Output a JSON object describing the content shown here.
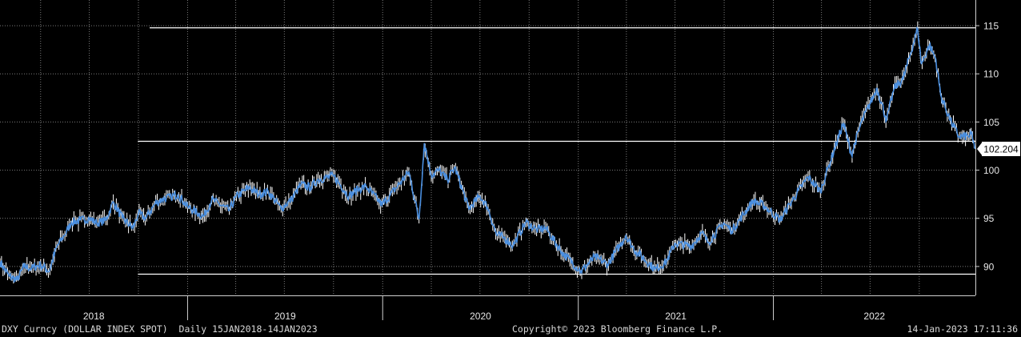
{
  "footer": {
    "left": "DXY Curncy (DOLLAR INDEX SPOT)  Daily 15JAN2018-14JAN2023",
    "center": "Copyright© 2023 Bloomberg Finance L.P.",
    "right": "14-Jan-2023 17:11:36"
  },
  "colors": {
    "background": "#000000",
    "grid": "#7a7a7a",
    "price_line": "#4a8fe0",
    "candle": "#ffffff",
    "reference_lines": "#ffffff",
    "last_price_badge_bg": "#ffffff",
    "last_price_badge_text": "#000000",
    "axis_text": "#e6e6e6"
  },
  "chart_data": {
    "type": "line",
    "series_id": "DXY Curncy",
    "x_unit": "date",
    "x_range": [
      "2018-01-15",
      "2023-01-14"
    ],
    "y_range": [
      87,
      117
    ],
    "y_ticks": [
      90,
      95,
      100,
      105,
      110,
      115
    ],
    "year_labels": [
      "2018",
      "2019",
      "2020",
      "2021",
      "2022"
    ],
    "year_boundaries": [
      "2019-01-01",
      "2020-01-01",
      "2021-01-01",
      "2022-01-01"
    ],
    "grid": true,
    "last_price": 102.204,
    "last_price_label": "102.204",
    "reference_lines": [
      {
        "value": 114.78,
        "from": "2018-10-22"
      },
      {
        "value": 103.0,
        "from": "2018-09-30"
      },
      {
        "value": 89.2,
        "from": "2018-09-30"
      }
    ],
    "points": [
      [
        "2018-01-15",
        90.5
      ],
      [
        "2018-02-01",
        89.0
      ],
      [
        "2018-02-16",
        88.6
      ],
      [
        "2018-03-01",
        90.0
      ],
      [
        "2018-03-15",
        89.8
      ],
      [
        "2018-04-01",
        90.2
      ],
      [
        "2018-04-17",
        89.5
      ],
      [
        "2018-05-01",
        92.0
      ],
      [
        "2018-05-15",
        93.2
      ],
      [
        "2018-05-29",
        94.6
      ],
      [
        "2018-06-15",
        94.8
      ],
      [
        "2018-07-01",
        95.0
      ],
      [
        "2018-07-15",
        94.5
      ],
      [
        "2018-08-01",
        94.8
      ],
      [
        "2018-08-15",
        96.7
      ],
      [
        "2018-09-01",
        95.0
      ],
      [
        "2018-09-21",
        94.0
      ],
      [
        "2018-10-01",
        95.5
      ],
      [
        "2018-10-15",
        95.0
      ],
      [
        "2018-11-01",
        96.5
      ],
      [
        "2018-11-15",
        97.0
      ],
      [
        "2018-12-01",
        97.2
      ],
      [
        "2018-12-14",
        97.5
      ],
      [
        "2019-01-01",
        96.2
      ],
      [
        "2019-01-31",
        95.2
      ],
      [
        "2019-02-15",
        96.9
      ],
      [
        "2019-03-01",
        96.5
      ],
      [
        "2019-03-20",
        95.8
      ],
      [
        "2019-04-01",
        97.2
      ],
      [
        "2019-04-26",
        98.2
      ],
      [
        "2019-05-15",
        97.5
      ],
      [
        "2019-06-01",
        97.8
      ],
      [
        "2019-06-25",
        96.0
      ],
      [
        "2019-07-15",
        97.0
      ],
      [
        "2019-08-01",
        98.5
      ],
      [
        "2019-08-20",
        98.2
      ],
      [
        "2019-09-01",
        99.0
      ],
      [
        "2019-10-01",
        99.4
      ],
      [
        "2019-10-30",
        97.3
      ],
      [
        "2019-11-15",
        98.0
      ],
      [
        "2019-12-01",
        98.3
      ],
      [
        "2019-12-31",
        96.4
      ],
      [
        "2020-01-15",
        97.4
      ],
      [
        "2020-02-19",
        99.8
      ],
      [
        "2020-03-09",
        94.9
      ],
      [
        "2020-03-19",
        102.8
      ],
      [
        "2020-04-01",
        99.5
      ],
      [
        "2020-04-15",
        100.0
      ],
      [
        "2020-05-01",
        99.0
      ],
      [
        "2020-05-15",
        100.3
      ],
      [
        "2020-06-10",
        96.0
      ],
      [
        "2020-07-01",
        97.3
      ],
      [
        "2020-07-15",
        96.2
      ],
      [
        "2020-08-01",
        93.3
      ],
      [
        "2020-08-15",
        93.0
      ],
      [
        "2020-09-01",
        92.2
      ],
      [
        "2020-09-25",
        94.6
      ],
      [
        "2020-10-15",
        93.8
      ],
      [
        "2020-11-01",
        94.0
      ],
      [
        "2020-12-01",
        91.5
      ],
      [
        "2021-01-06",
        89.5
      ],
      [
        "2021-02-01",
        91.0
      ],
      [
        "2021-02-25",
        90.2
      ],
      [
        "2021-03-31",
        93.2
      ],
      [
        "2021-04-15",
        91.8
      ],
      [
        "2021-05-25",
        89.7
      ],
      [
        "2021-06-15",
        90.5
      ],
      [
        "2021-07-01",
        92.4
      ],
      [
        "2021-08-01",
        92.1
      ],
      [
        "2021-08-20",
        93.5
      ],
      [
        "2021-09-01",
        92.5
      ],
      [
        "2021-09-30",
        94.5
      ],
      [
        "2021-10-15",
        93.7
      ],
      [
        "2021-11-24",
        96.8
      ],
      [
        "2021-12-15",
        96.3
      ],
      [
        "2022-01-14",
        94.8
      ],
      [
        "2022-02-01",
        96.5
      ],
      [
        "2022-03-07",
        99.3
      ],
      [
        "2022-03-30",
        97.8
      ],
      [
        "2022-04-15",
        100.5
      ],
      [
        "2022-05-12",
        104.9
      ],
      [
        "2022-05-27",
        101.6
      ],
      [
        "2022-06-15",
        105.0
      ],
      [
        "2022-07-14",
        108.5
      ],
      [
        "2022-08-01",
        105.2
      ],
      [
        "2022-08-15",
        108.5
      ],
      [
        "2022-09-01",
        109.5
      ],
      [
        "2022-09-28",
        114.7
      ],
      [
        "2022-10-05",
        111.0
      ],
      [
        "2022-10-20",
        113.0
      ],
      [
        "2022-11-01",
        111.5
      ],
      [
        "2022-11-10",
        107.8
      ],
      [
        "2022-11-28",
        105.2
      ],
      [
        "2022-12-14",
        103.5
      ],
      [
        "2023-01-01",
        103.5
      ],
      [
        "2023-01-06",
        103.8
      ],
      [
        "2023-01-13",
        102.204
      ]
    ]
  }
}
